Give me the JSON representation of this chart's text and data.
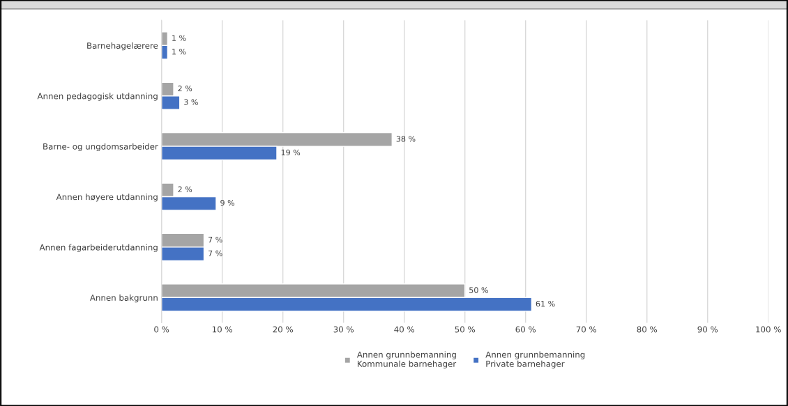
{
  "chart_data": {
    "type": "bar",
    "orientation": "horizontal",
    "categories": [
      "Barnehagelærere",
      "Annen pedagogisk utdanning",
      "Barne- og ungdomsarbeider",
      "Annen høyere utdanning",
      "Annen fagarbeiderutdanning",
      "Annen bakgrunn"
    ],
    "series": [
      {
        "name": "Annen grunnbemanning\nKommunale barnehager",
        "color": "#a5a5a5",
        "values": [
          1,
          2,
          38,
          2,
          7,
          50
        ],
        "value_labels": [
          "1 %",
          "2 %",
          "38 %",
          "2 %",
          "7 %",
          "50 %"
        ]
      },
      {
        "name": "Annen grunnbemanning\nPrivate barnehager",
        "color": "#4472c4",
        "values": [
          1,
          3,
          19,
          9,
          7,
          61
        ],
        "value_labels": [
          "1 %",
          "3 %",
          "19 %",
          "9 %",
          "7 %",
          "61 %"
        ]
      }
    ],
    "xlim": [
      0,
      100
    ],
    "xticks": [
      {
        "value": 0,
        "label": "0 %"
      },
      {
        "value": 10,
        "label": "10 %"
      },
      {
        "value": 20,
        "label": "20 %"
      },
      {
        "value": 30,
        "label": "30 %"
      },
      {
        "value": 40,
        "label": "40 %"
      },
      {
        "value": 50,
        "label": "50 %"
      },
      {
        "value": 60,
        "label": "60 %"
      },
      {
        "value": 70,
        "label": "70 %"
      },
      {
        "value": 80,
        "label": "80 %"
      },
      {
        "value": 90,
        "label": "90 %"
      },
      {
        "value": 100,
        "label": "100 %"
      }
    ],
    "grid": "x",
    "legend": "bottom"
  }
}
